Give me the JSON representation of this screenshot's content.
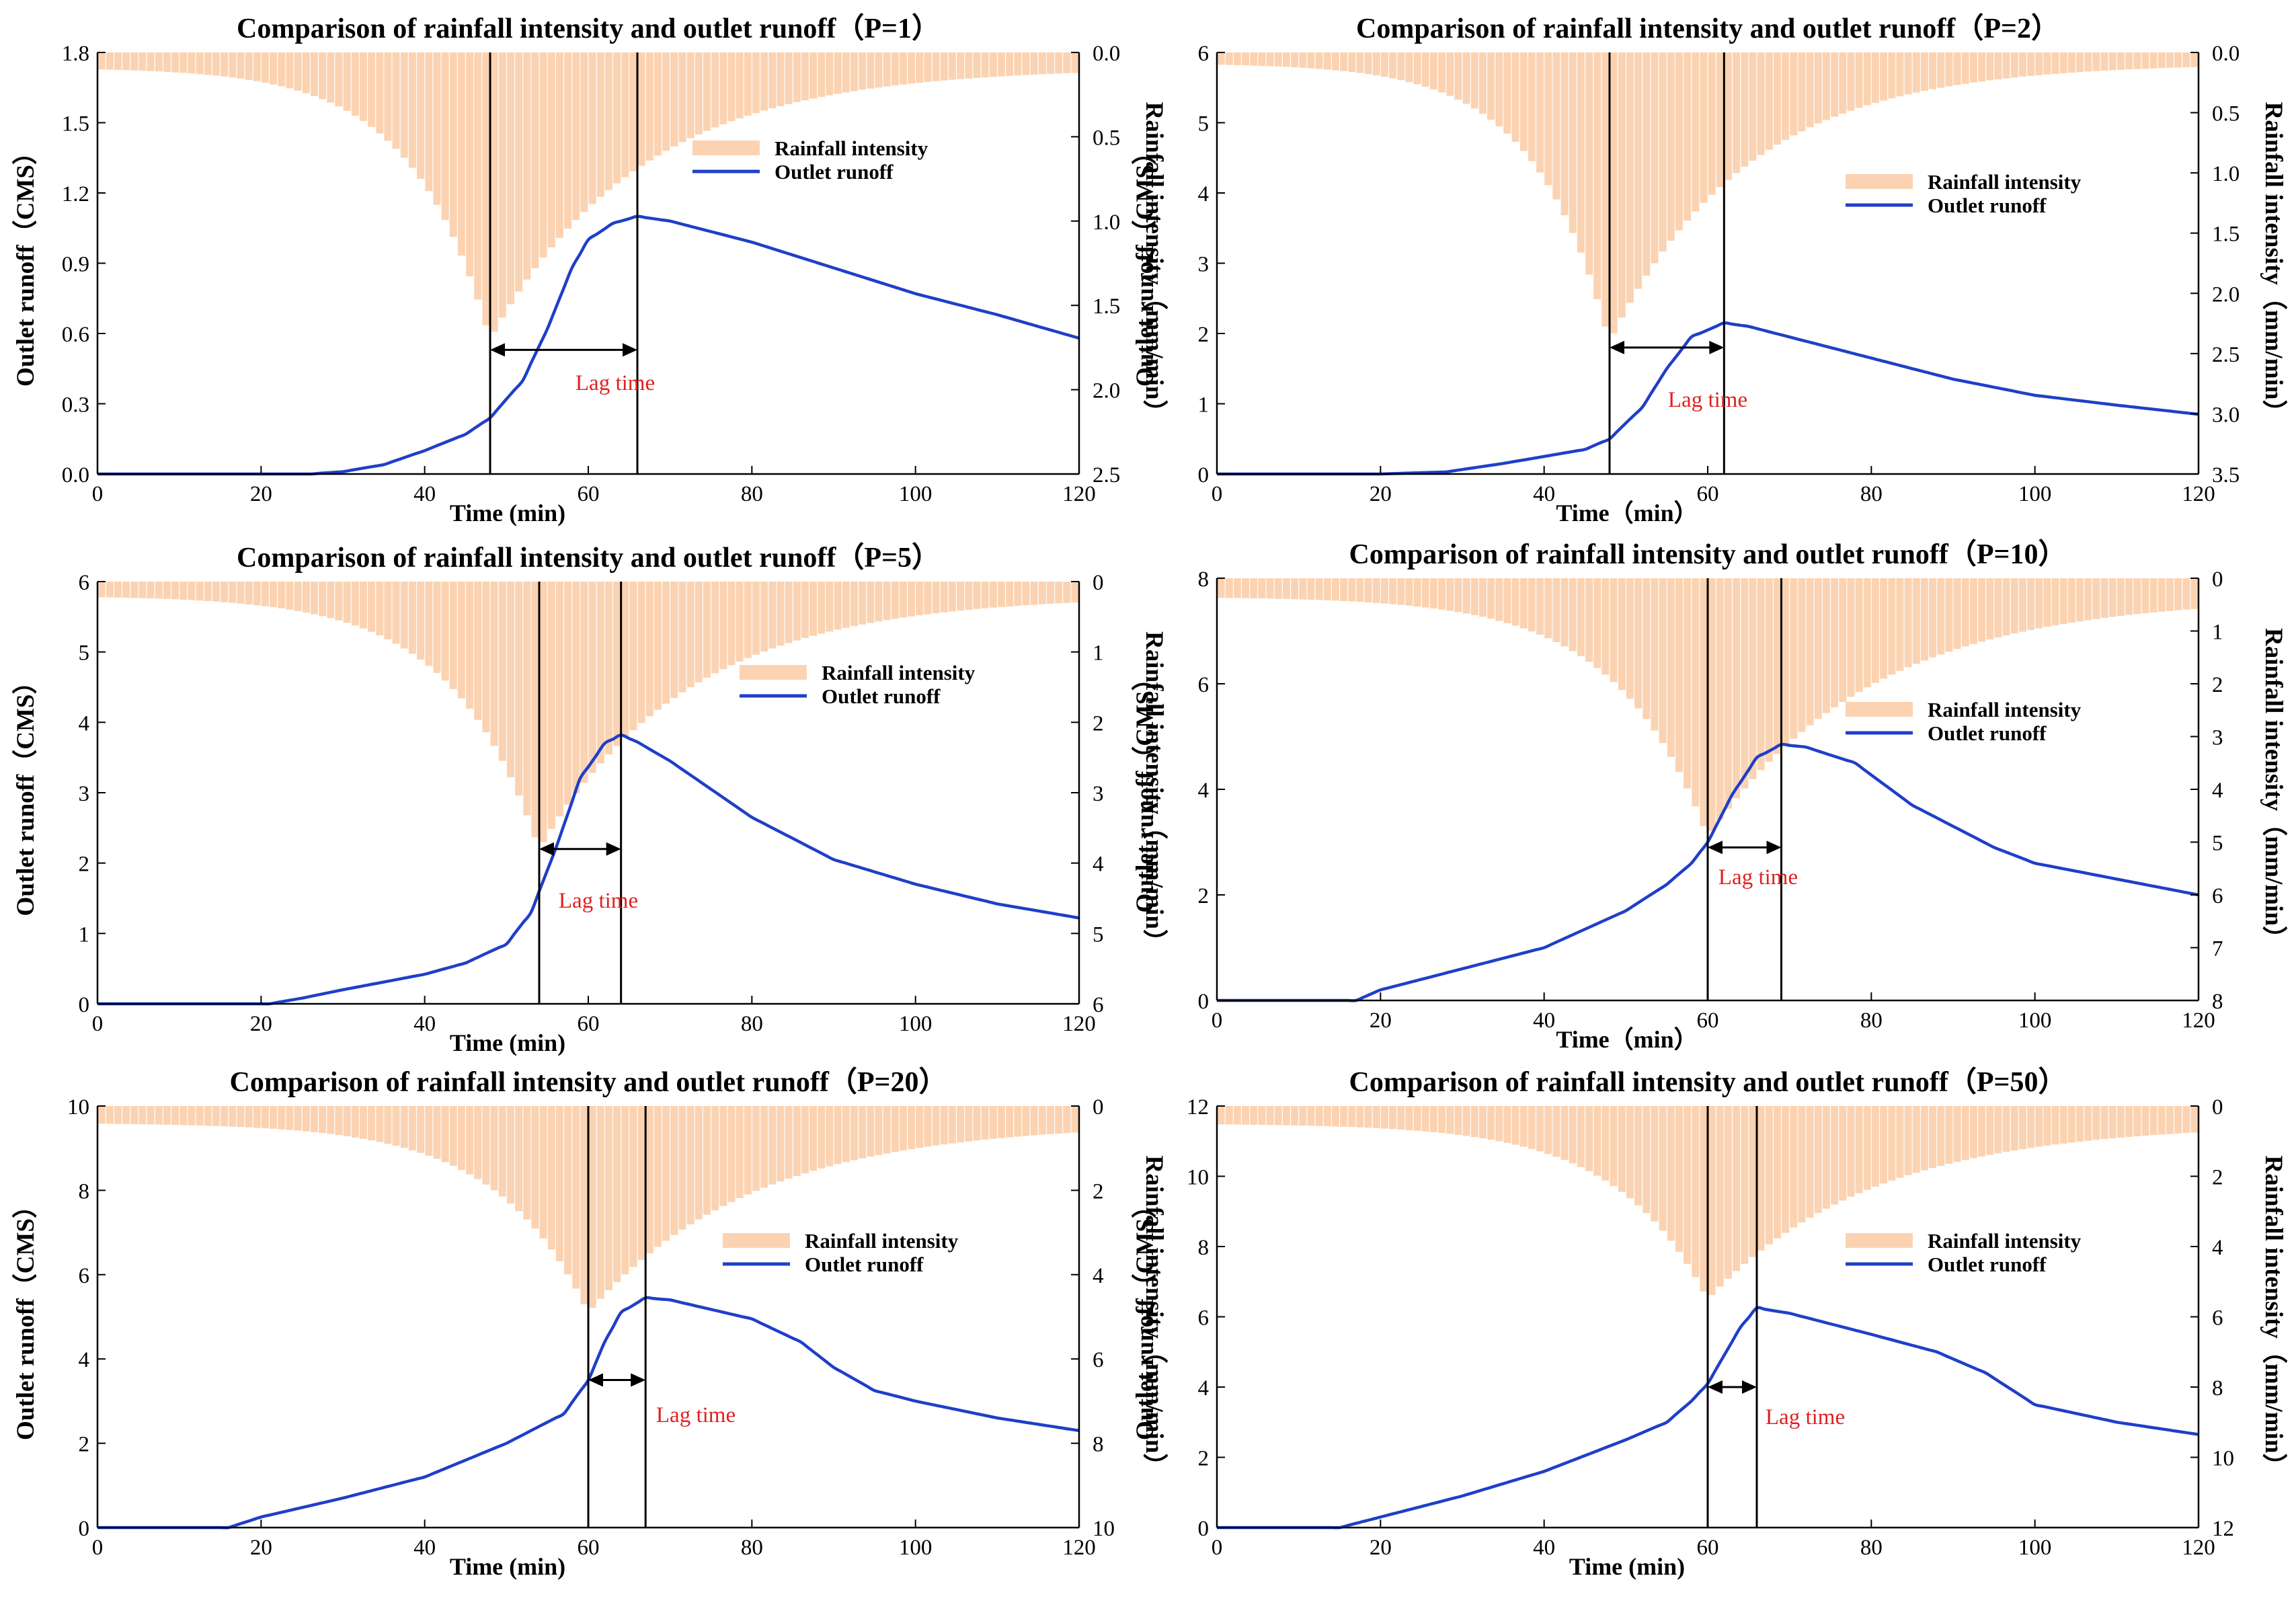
{
  "colors": {
    "rain": "#fbd3b2",
    "runoff": "#1f3fc8",
    "lag": "#e02020",
    "axis": "#000000",
    "marker": "#000000"
  },
  "chart_data": [
    {
      "type": "bar+line",
      "id": "p1",
      "title": "Comparison of rainfall intensity and outlet runoff（P=1）",
      "xlabel": "Time (min)",
      "ylabel": "Outlet runoff（CMS）",
      "y2label": "Rainfall intensity（mm/min）",
      "xlim": [
        0,
        120
      ],
      "xticks": [
        0,
        20,
        40,
        60,
        80,
        100,
        120
      ],
      "ylim": [
        0,
        1.8
      ],
      "yticks": [
        0.0,
        0.3,
        0.6,
        0.9,
        1.2,
        1.5,
        1.8
      ],
      "ytick_labels": [
        "0.0",
        "0.3",
        "0.6",
        "0.9",
        "1.2",
        "1.5",
        "1.8"
      ],
      "y2lim": [
        0,
        2.5
      ],
      "y2ticks": [
        0.0,
        0.5,
        1.0,
        1.5,
        2.0,
        2.5
      ],
      "y2tick_labels": [
        "0.0",
        "0.5",
        "1.0",
        "1.5",
        "2.0",
        "2.5"
      ],
      "legend": [
        "Rainfall intensity",
        "Outlet runoff"
      ],
      "legend_position": "upper-middle",
      "lag_label": "Lag time",
      "rain_peak_time": 48,
      "runoff_peak_time": 66,
      "lag_arrow_y": 0.53,
      "rain": {
        "peak_time": 48,
        "peak": 1.7,
        "base": 0.09,
        "k_rise": 0.105,
        "k_fall": 0.055,
        "bin_min": 1
      },
      "runoff": {
        "t": [
          0,
          26,
          30,
          35,
          40,
          45,
          48,
          52,
          55,
          58,
          60,
          63,
          66,
          70,
          80,
          90,
          100,
          110,
          120
        ],
        "q": [
          0,
          0,
          0.01,
          0.04,
          0.1,
          0.17,
          0.24,
          0.4,
          0.62,
          0.88,
          1.0,
          1.07,
          1.1,
          1.08,
          0.99,
          0.88,
          0.77,
          0.68,
          0.58
        ]
      }
    },
    {
      "type": "bar+line",
      "id": "p2",
      "title": "Comparison of rainfall intensity and outlet runoff（P=2）",
      "xlabel": "Time（min）",
      "ylabel": "Outlet runoff（CMS）",
      "y2label": "Rainfall intensity（mm/min）",
      "xlim": [
        0,
        120
      ],
      "xticks": [
        0,
        20,
        40,
        60,
        80,
        100,
        120
      ],
      "ylim": [
        0,
        6
      ],
      "yticks": [
        0,
        1,
        2,
        3,
        4,
        5,
        6
      ],
      "ytick_labels": [
        "0",
        "1",
        "2",
        "3",
        "4",
        "5",
        "6"
      ],
      "y2lim": [
        0,
        3.5
      ],
      "y2ticks": [
        0.0,
        0.5,
        1.0,
        1.5,
        2.0,
        2.5,
        3.0,
        3.5
      ],
      "y2tick_labels": [
        "0.0",
        "0.5",
        "1.0",
        "1.5",
        "2.0",
        "2.5",
        "3.0",
        "3.5"
      ],
      "legend": [
        "Rainfall intensity",
        "Outlet runoff"
      ],
      "legend_position": "right",
      "lag_label": "Lag time",
      "rain_peak_time": 48,
      "runoff_peak_time": 62,
      "lag_arrow_y": 1.8,
      "rain": {
        "peak_time": 48,
        "peak": 2.4,
        "base": 0.09,
        "k_rise": 0.11,
        "k_fall": 0.06,
        "bin_min": 1
      },
      "runoff": {
        "t": [
          0,
          20,
          28,
          35,
          40,
          45,
          48,
          52,
          55,
          58,
          62,
          65,
          70,
          80,
          90,
          100,
          110,
          120
        ],
        "q": [
          0,
          0,
          0.03,
          0.15,
          0.25,
          0.35,
          0.5,
          0.95,
          1.5,
          1.95,
          2.15,
          2.1,
          1.95,
          1.65,
          1.35,
          1.12,
          0.98,
          0.85
        ]
      }
    },
    {
      "type": "bar+line",
      "id": "p5",
      "title": "Comparison of rainfall intensity and outlet runoff（P=5）",
      "xlabel": "Time (min)",
      "ylabel": "Outlet runoff（CMS）",
      "y2label": "Rainfall intensity（mm/min）",
      "xlim": [
        0,
        120
      ],
      "xticks": [
        0,
        20,
        40,
        60,
        80,
        100,
        120
      ],
      "ylim": [
        0,
        6
      ],
      "yticks": [
        0,
        1,
        2,
        3,
        4,
        5,
        6
      ],
      "ytick_labels": [
        "0",
        "1",
        "2",
        "3",
        "4",
        "5",
        "6"
      ],
      "y2lim": [
        0,
        6
      ],
      "y2ticks": [
        0,
        1,
        2,
        3,
        4,
        5,
        6
      ],
      "y2tick_labels": [
        "0",
        "1",
        "2",
        "3",
        "4",
        "5",
        "6"
      ],
      "legend": [
        "Rainfall intensity",
        "Outlet runoff"
      ],
      "legend_position": "right",
      "lag_label": "Lag time",
      "rain_peak_time": 54,
      "runoff_peak_time": 64,
      "lag_arrow_y": 2.2,
      "rain": {
        "peak_time": 54,
        "peak": 3.8,
        "base": 0.2,
        "k_rise": 0.095,
        "k_fall": 0.055,
        "bin_min": 1
      },
      "runoff": {
        "t": [
          0,
          21,
          25,
          30,
          40,
          45,
          50,
          53,
          56,
          59,
          62,
          64,
          66,
          70,
          80,
          90,
          100,
          110,
          120
        ],
        "q": [
          0,
          0,
          0.08,
          0.2,
          0.42,
          0.58,
          0.85,
          1.3,
          2.2,
          3.2,
          3.7,
          3.82,
          3.72,
          3.45,
          2.65,
          2.05,
          1.7,
          1.42,
          1.22
        ]
      }
    },
    {
      "type": "bar+line",
      "id": "p10",
      "title": "Comparison of rainfall intensity and outlet runoff（P=10）",
      "xlabel": "Time（min）",
      "ylabel": "Outlet runoff（CMS）",
      "y2label": "Rainfall intensity（mm/min）",
      "xlim": [
        0,
        120
      ],
      "xticks": [
        0,
        20,
        40,
        60,
        80,
        100,
        120
      ],
      "ylim": [
        0,
        8
      ],
      "yticks": [
        0,
        2,
        4,
        6,
        8
      ],
      "ytick_labels": [
        "0",
        "2",
        "4",
        "6",
        "8"
      ],
      "y2lim": [
        0,
        8
      ],
      "y2ticks": [
        0,
        1,
        2,
        3,
        4,
        5,
        6,
        7,
        8
      ],
      "y2tick_labels": [
        "0",
        "1",
        "2",
        "3",
        "4",
        "5",
        "6",
        "7",
        "8"
      ],
      "legend": [
        "Rainfall intensity",
        "Outlet runoff"
      ],
      "legend_position": "right",
      "lag_label": "Lag time",
      "rain_peak_time": 60,
      "runoff_peak_time": 69,
      "lag_arrow_y": 2.9,
      "rain": {
        "peak_time": 60,
        "peak": 4.9,
        "base": 0.35,
        "k_rise": 0.09,
        "k_fall": 0.05,
        "bin_min": 1
      },
      "runoff": {
        "t": [
          0,
          17,
          20,
          30,
          40,
          50,
          55,
          58,
          60,
          63,
          66,
          69,
          72,
          78,
          85,
          90,
          95,
          100,
          110,
          120
        ],
        "q": [
          0,
          0,
          0.2,
          0.6,
          1.0,
          1.7,
          2.2,
          2.6,
          3.0,
          3.9,
          4.6,
          4.85,
          4.8,
          4.5,
          3.7,
          3.3,
          2.9,
          2.6,
          2.3,
          2.0
        ]
      }
    },
    {
      "type": "bar+line",
      "id": "p20",
      "title": "Comparison of rainfall intensity and outlet runoff（P=20）",
      "xlabel": "Time (min)",
      "ylabel": "Outlet runoff（CMS）",
      "y2label": "Rainfall intensity（mm/min）",
      "xlim": [
        0,
        120
      ],
      "xticks": [
        0,
        20,
        40,
        60,
        80,
        100,
        120
      ],
      "ylim": [
        0,
        10
      ],
      "yticks": [
        0,
        2,
        4,
        6,
        8,
        10
      ],
      "ytick_labels": [
        "0",
        "2",
        "4",
        "6",
        "8",
        "10"
      ],
      "y2lim": [
        0,
        10
      ],
      "y2ticks": [
        0,
        2,
        4,
        6,
        8,
        10
      ],
      "y2tick_labels": [
        "0",
        "2",
        "4",
        "6",
        "8",
        "10"
      ],
      "legend": [
        "Rainfall intensity",
        "Outlet runoff"
      ],
      "legend_position": "right",
      "lag_label": "Lag time",
      "rain_peak_time": 60,
      "runoff_peak_time": 67,
      "lag_arrow_y": 3.5,
      "rain": {
        "peak_time": 60,
        "peak": 4.9,
        "base": 0.4,
        "k_rise": 0.09,
        "k_fall": 0.05,
        "bin_min": 1
      },
      "runoff": {
        "t": [
          0,
          16,
          20,
          30,
          40,
          50,
          57,
          60,
          62,
          64,
          67,
          70,
          80,
          86,
          90,
          95,
          100,
          110,
          120
        ],
        "q": [
          0,
          0,
          0.25,
          0.7,
          1.2,
          2.0,
          2.7,
          3.5,
          4.4,
          5.1,
          5.45,
          5.4,
          4.95,
          4.4,
          3.8,
          3.25,
          3.0,
          2.6,
          2.3
        ]
      }
    },
    {
      "type": "bar+line",
      "id": "p50",
      "title": "Comparison of rainfall intensity and outlet runoff（P=50）",
      "xlabel": "Time (min)",
      "ylabel": "Outlet runoff（CMS）",
      "y2label": "Rainfall intensity（mm/min）",
      "xlim": [
        0,
        120
      ],
      "xticks": [
        0,
        20,
        40,
        60,
        80,
        100,
        120
      ],
      "ylim": [
        0,
        12
      ],
      "yticks": [
        0,
        2,
        4,
        6,
        8,
        10,
        12
      ],
      "ytick_labels": [
        "0",
        "2",
        "4",
        "6",
        "8",
        "10",
        "12"
      ],
      "y2lim": [
        0,
        12
      ],
      "y2ticks": [
        0,
        2,
        4,
        6,
        8,
        10,
        12
      ],
      "y2tick_labels": [
        "0",
        "2",
        "4",
        "6",
        "8",
        "10",
        "12"
      ],
      "legend": [
        "Rainfall intensity",
        "Outlet runoff"
      ],
      "legend_position": "right",
      "lag_label": "Lag time",
      "rain_peak_time": 60,
      "runoff_peak_time": 66,
      "lag_arrow_y": 4.0,
      "rain": {
        "peak_time": 60,
        "peak": 5.5,
        "base": 0.5,
        "k_rise": 0.09,
        "k_fall": 0.05,
        "bin_min": 1
      },
      "runoff": {
        "t": [
          0,
          15,
          20,
          30,
          40,
          50,
          55,
          58,
          60,
          62,
          64,
          66,
          70,
          80,
          88,
          94,
          100,
          110,
          120
        ],
        "q": [
          0,
          0,
          0.3,
          0.9,
          1.6,
          2.5,
          3.0,
          3.6,
          4.1,
          4.9,
          5.7,
          6.25,
          6.1,
          5.5,
          5.0,
          4.4,
          3.5,
          3.0,
          2.65
        ]
      }
    }
  ]
}
